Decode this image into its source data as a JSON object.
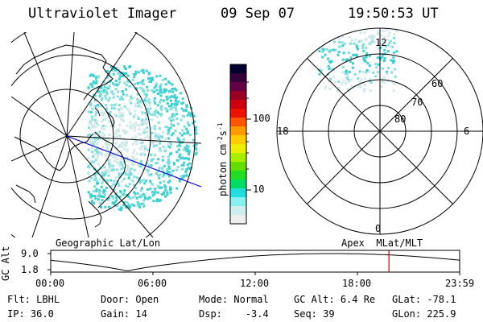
{
  "header": {
    "title": "Ultraviolet Imager",
    "date": "09 Sep 07",
    "time": "19:50:53 UT"
  },
  "geo_panel": {
    "label": "Geographic Lat/Lon"
  },
  "apex_panel": {
    "label": "Apex  MLat/MLT",
    "mlt_labels": {
      "top": "12",
      "left": "18",
      "right": "6",
      "bottom": "0"
    },
    "lat_labels": [
      "60",
      "70",
      "80"
    ]
  },
  "colorbar": {
    "unit_label": "photon cm",
    "unit_sup1": "-2",
    "unit_mid": "s",
    "unit_sup2": "-1",
    "ticks": [
      "100",
      "10"
    ],
    "colors": [
      "#000033",
      "#33003a",
      "#660044",
      "#990022",
      "#cc0011",
      "#ee1100",
      "#ff5500",
      "#ff9900",
      "#ffcc00",
      "#eeee00",
      "#aaee00",
      "#66dd00",
      "#22dd22",
      "#00dd66",
      "#22dddd",
      "#88eeee",
      "#cceeee",
      "#eeeeee"
    ]
  },
  "altitude_plot": {
    "ylabel": "GC Alt",
    "yticks": [
      "9.0",
      "1.8"
    ],
    "xticks": [
      "00:00",
      "06:00",
      "12:00",
      "18:00",
      "23:59"
    ],
    "marker_hour": 19.85
  },
  "status": {
    "row1": [
      {
        "key": "Flt:",
        "value": "LBHL"
      },
      {
        "key": "Door:",
        "value": "Open"
      },
      {
        "key": "Mode:",
        "value": "Normal"
      },
      {
        "key": "GC Alt:",
        "value": "6.4 Re"
      },
      {
        "key": "GLat:",
        "value": "-78.1"
      }
    ],
    "row2": [
      {
        "key": "IP:",
        "value": "36.0"
      },
      {
        "key": "Gain:",
        "value": "14"
      },
      {
        "key": "Dsp:",
        "value": "-3.4"
      },
      {
        "key": "Seq:",
        "value": "39"
      },
      {
        "key": "GLon:",
        "value": "225.9"
      }
    ]
  },
  "colors": {
    "aurora_light": "#cfe9ea",
    "aurora_mid": "#7fdede",
    "aurora_bright": "#3cd0d0",
    "orbit_line": "#0000cc",
    "marker": "#cc0000"
  }
}
